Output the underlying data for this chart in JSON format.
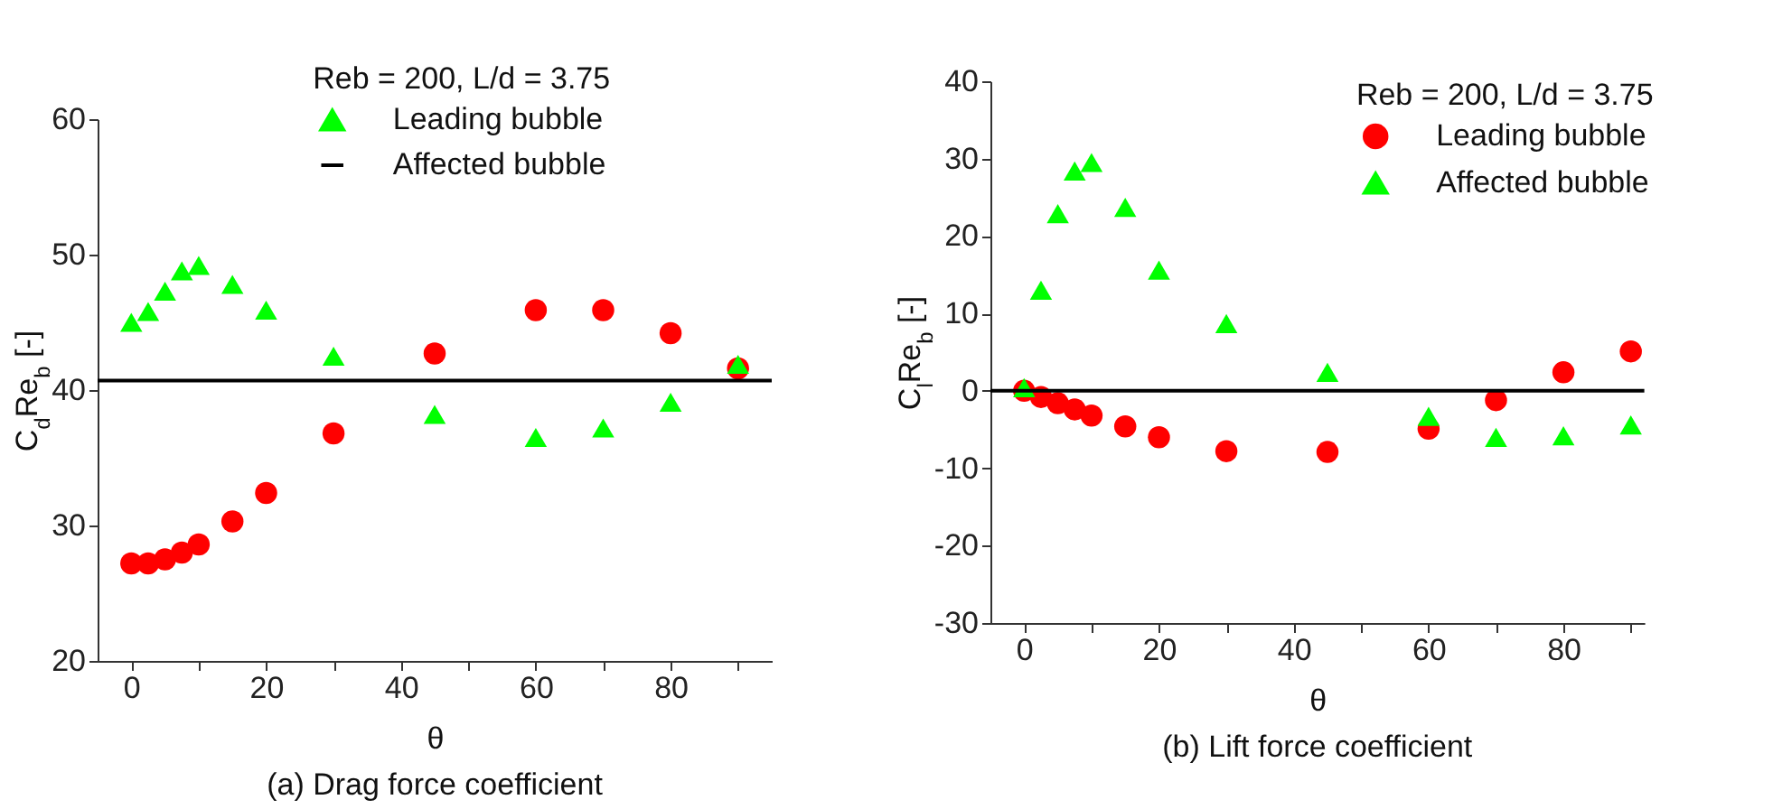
{
  "chart_data": [
    {
      "type": "scatter",
      "title": "(a) Drag force coefficient",
      "xlabel": "θ",
      "ylabel": "C$_{d}$Re$_{b}$ [-]",
      "legend_title": "Reb = 200, L/d = 3.75",
      "legend": "top",
      "grid": false,
      "x": [
        0,
        2.5,
        5,
        7.5,
        10,
        15,
        20,
        30,
        45,
        60,
        70,
        80,
        90
      ],
      "xlim": [
        -5,
        95
      ],
      "xticks": [
        0,
        {
          "value": 10,
          "label": null
        },
        20,
        {
          "value": 30,
          "label": null
        },
        40,
        {
          "value": 50,
          "label": null
        },
        60,
        {
          "value": 70,
          "label": null
        },
        80,
        {
          "value": 90,
          "label": null
        }
      ],
      "ylim": [
        20,
        60
      ],
      "yticks": [
        20,
        30,
        40,
        50,
        60
      ],
      "series": [
        {
          "color": "#ff0000",
          "marker": "circle",
          "values": [
            27.2,
            27.2,
            27.5,
            28.0,
            28.6,
            30.3,
            32.4,
            36.8,
            42.7,
            45.9,
            45.9,
            44.2,
            41.6
          ]
        },
        {
          "name": "Leading bubble",
          "color": "#00ff00",
          "marker": "triangle",
          "values": [
            45.0,
            45.8,
            47.3,
            48.8,
            49.2,
            47.8,
            45.9,
            42.5,
            38.2,
            36.5,
            37.2,
            39.1,
            41.9
          ]
        },
        {
          "name": "Affected bubble",
          "type": "line",
          "color": "#000000",
          "marker": "none",
          "x": [
            -5,
            95
          ],
          "values": [
            40.7,
            40.7
          ]
        }
      ]
    },
    {
      "type": "scatter",
      "title": "(b) Lift force coefficient",
      "xlabel": "θ",
      "ylabel": "C$_{l}$Re$_{b}$ [-]",
      "legend_title": "Reb = 200, L/d = 3.75",
      "legend": "top right",
      "grid": false,
      "x": [
        0,
        2.5,
        5,
        7.5,
        10,
        15,
        20,
        30,
        45,
        60,
        70,
        80,
        90
      ],
      "xlim": [
        -5,
        92
      ],
      "xticks": [
        0,
        {
          "value": 10,
          "label": null
        },
        20,
        {
          "value": 30,
          "label": null
        },
        40,
        {
          "value": 50,
          "label": null
        },
        60,
        {
          "value": 70,
          "label": null
        },
        80,
        {
          "value": 90,
          "label": null
        }
      ],
      "ylim": [
        -30,
        40
      ],
      "yticks": [
        -30,
        -20,
        -10,
        0,
        10,
        20,
        30,
        40
      ],
      "ref_lines": [
        {
          "axis": "y",
          "value": 0,
          "color": "#000000"
        }
      ],
      "series": [
        {
          "name": "Leading bubble",
          "color": "#ff0000",
          "marker": "circle",
          "values": [
            0.0,
            -0.8,
            -1.6,
            -2.4,
            -3.2,
            -4.6,
            -6.0,
            -7.8,
            -7.9,
            -4.9,
            -1.2,
            2.4,
            5.1
          ]
        },
        {
          "name": "Affected bubble",
          "color": "#00ff00",
          "marker": "triangle",
          "values": [
            0.4,
            13.0,
            22.9,
            28.4,
            29.5,
            23.7,
            15.6,
            8.7,
            2.4,
            -3.3,
            -6.0,
            -5.8,
            -4.4
          ]
        }
      ]
    }
  ]
}
